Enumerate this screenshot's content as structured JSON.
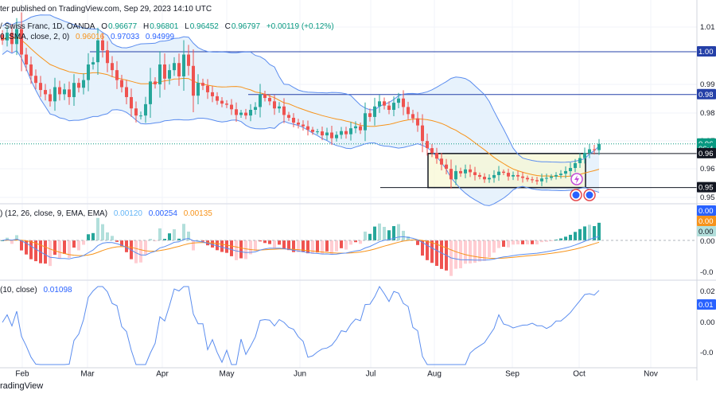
{
  "header": {
    "published": "ter published on TradingView.com, Sep 29, 2023 14:10 UTC",
    "symbol": "/ Swiss Franc, 1D, OANDA",
    "ohlc": [
      {
        "k": "O",
        "v": "0.96677"
      },
      {
        "k": "H",
        "v": "0.96801"
      },
      {
        "k": "L",
        "v": "0.96452"
      },
      {
        "k": "C",
        "v": "0.96797"
      }
    ],
    "change": "+0.00119 (+0.12%)",
    "bb_label": "0, SMA, close, 2, 0)",
    "bb_values": [
      "0.96016",
      "0.97033",
      "0.94999"
    ],
    "macd_label": ") (12, 26, close, 9, EMA, EMA)",
    "macd_values": [
      "0.00120",
      "0.00254",
      "0.00135"
    ],
    "mom_label": "(10, close)",
    "mom_value": "0.01098"
  },
  "footer": "radingView",
  "colors": {
    "up": "#26a69a",
    "down": "#ef5350",
    "bb": "#5b8def",
    "bb_fill": "#e3f0fc",
    "basis": "#f7931a",
    "hline": "#2540a8",
    "box_fill": "#f8f8d2",
    "macd": "#5b8def",
    "signal": "#f7931a",
    "mom": "#5b8def"
  },
  "chart_data": [
    {
      "type": "candlestick",
      "ylim": [
        0.948,
        1.012
      ],
      "y_ticks": [
        "1.01",
        "0.99",
        "0.98",
        "0.97",
        "0.96",
        "0.95"
      ],
      "x_ticks": [
        "Feb",
        "Mar",
        "Apr",
        "May",
        "Jun",
        "Jul",
        "Aug",
        "Sep",
        "Oct",
        "Nov"
      ],
      "price_tags": [
        {
          "text": "1.00",
          "value": 1.0005,
          "style": "hline"
        },
        {
          "text": "0.98",
          "value": 0.9854,
          "style": "hline"
        },
        {
          "text": "0.96",
          "value": 0.968,
          "style": "last"
        },
        {
          "text": "06:4",
          "value": 0.9668,
          "style": "timer"
        },
        {
          "text": "0.96",
          "value": 0.9646,
          "style": "dark"
        },
        {
          "text": "0.95",
          "value": 0.9526,
          "style": "dark"
        }
      ],
      "horizontal_lines": [
        1.0005,
        0.9854,
        0.9646,
        0.9526
      ],
      "last_price": 0.96797,
      "range_box": {
        "x0": "Jul 26",
        "x1": "Sep 29",
        "y0": 0.9526,
        "y1": 0.9646
      },
      "bollinger": {
        "length": 20,
        "basis": "SMA",
        "mult": 2,
        "basis_value": 0.96016,
        "upper": 0.97033,
        "lower": 0.94999
      },
      "closes": [
        1.0045,
        1.0072,
        1.0032,
        1.0085,
        0.9995,
        0.996,
        0.992,
        0.9895,
        0.987,
        0.9855,
        0.983,
        0.988,
        0.9855,
        0.9872,
        0.9845,
        0.9895,
        0.9878,
        0.9905,
        0.996,
        0.9968,
        1.0045,
        1.001,
        0.9965,
        0.994,
        0.9905,
        0.988,
        0.9845,
        0.9805,
        0.978,
        0.978,
        0.982,
        0.99,
        0.989,
        0.996,
        0.991,
        0.994,
        0.9965,
        0.9918,
        0.9995,
        0.9955,
        0.985,
        0.9895,
        0.9885,
        0.9862,
        0.9848,
        0.9832,
        0.9822,
        0.9818,
        0.9802,
        0.9782,
        0.979,
        0.978,
        0.98,
        0.981,
        0.9855,
        0.9842,
        0.983,
        0.9805,
        0.9812,
        0.9782,
        0.9772,
        0.9755,
        0.9748,
        0.9742,
        0.973,
        0.9722,
        0.9724,
        0.971,
        0.972,
        0.97,
        0.9712,
        0.9725,
        0.9714,
        0.9735,
        0.9742,
        0.9728,
        0.9788,
        0.9775,
        0.9812,
        0.983,
        0.9815,
        0.98,
        0.9825,
        0.984,
        0.981,
        0.9785,
        0.977,
        0.9745,
        0.969,
        0.9665,
        0.9648,
        0.9628,
        0.9607,
        0.9592,
        0.9555,
        0.9584,
        0.9576,
        0.959,
        0.958,
        0.957,
        0.9564,
        0.9555,
        0.956,
        0.957,
        0.9582,
        0.9578,
        0.9565,
        0.957,
        0.9565,
        0.956,
        0.9555,
        0.9552,
        0.9548,
        0.9558,
        0.956,
        0.9565,
        0.957,
        0.9575,
        0.9584,
        0.9595,
        0.9612,
        0.963,
        0.9648,
        0.9661,
        0.9658,
        0.968
      ]
    },
    {
      "type": "histogram_line",
      "title": "MACD",
      "series": [
        {
          "name": "MACD",
          "value": 0.00254
        },
        {
          "name": "Signal",
          "value": 0.00135
        },
        {
          "name": "Histogram",
          "value": 0.0012
        }
      ],
      "y_ticks": [
        "0.00",
        "0.00",
        "0.00",
        "-0.0"
      ]
    },
    {
      "type": "line",
      "title": "Momentum",
      "series": [
        {
          "name": "Momentum",
          "value": 0.01098
        }
      ],
      "y_ticks": [
        "0.02",
        "0.01",
        "0.00",
        "-0.0"
      ]
    }
  ]
}
